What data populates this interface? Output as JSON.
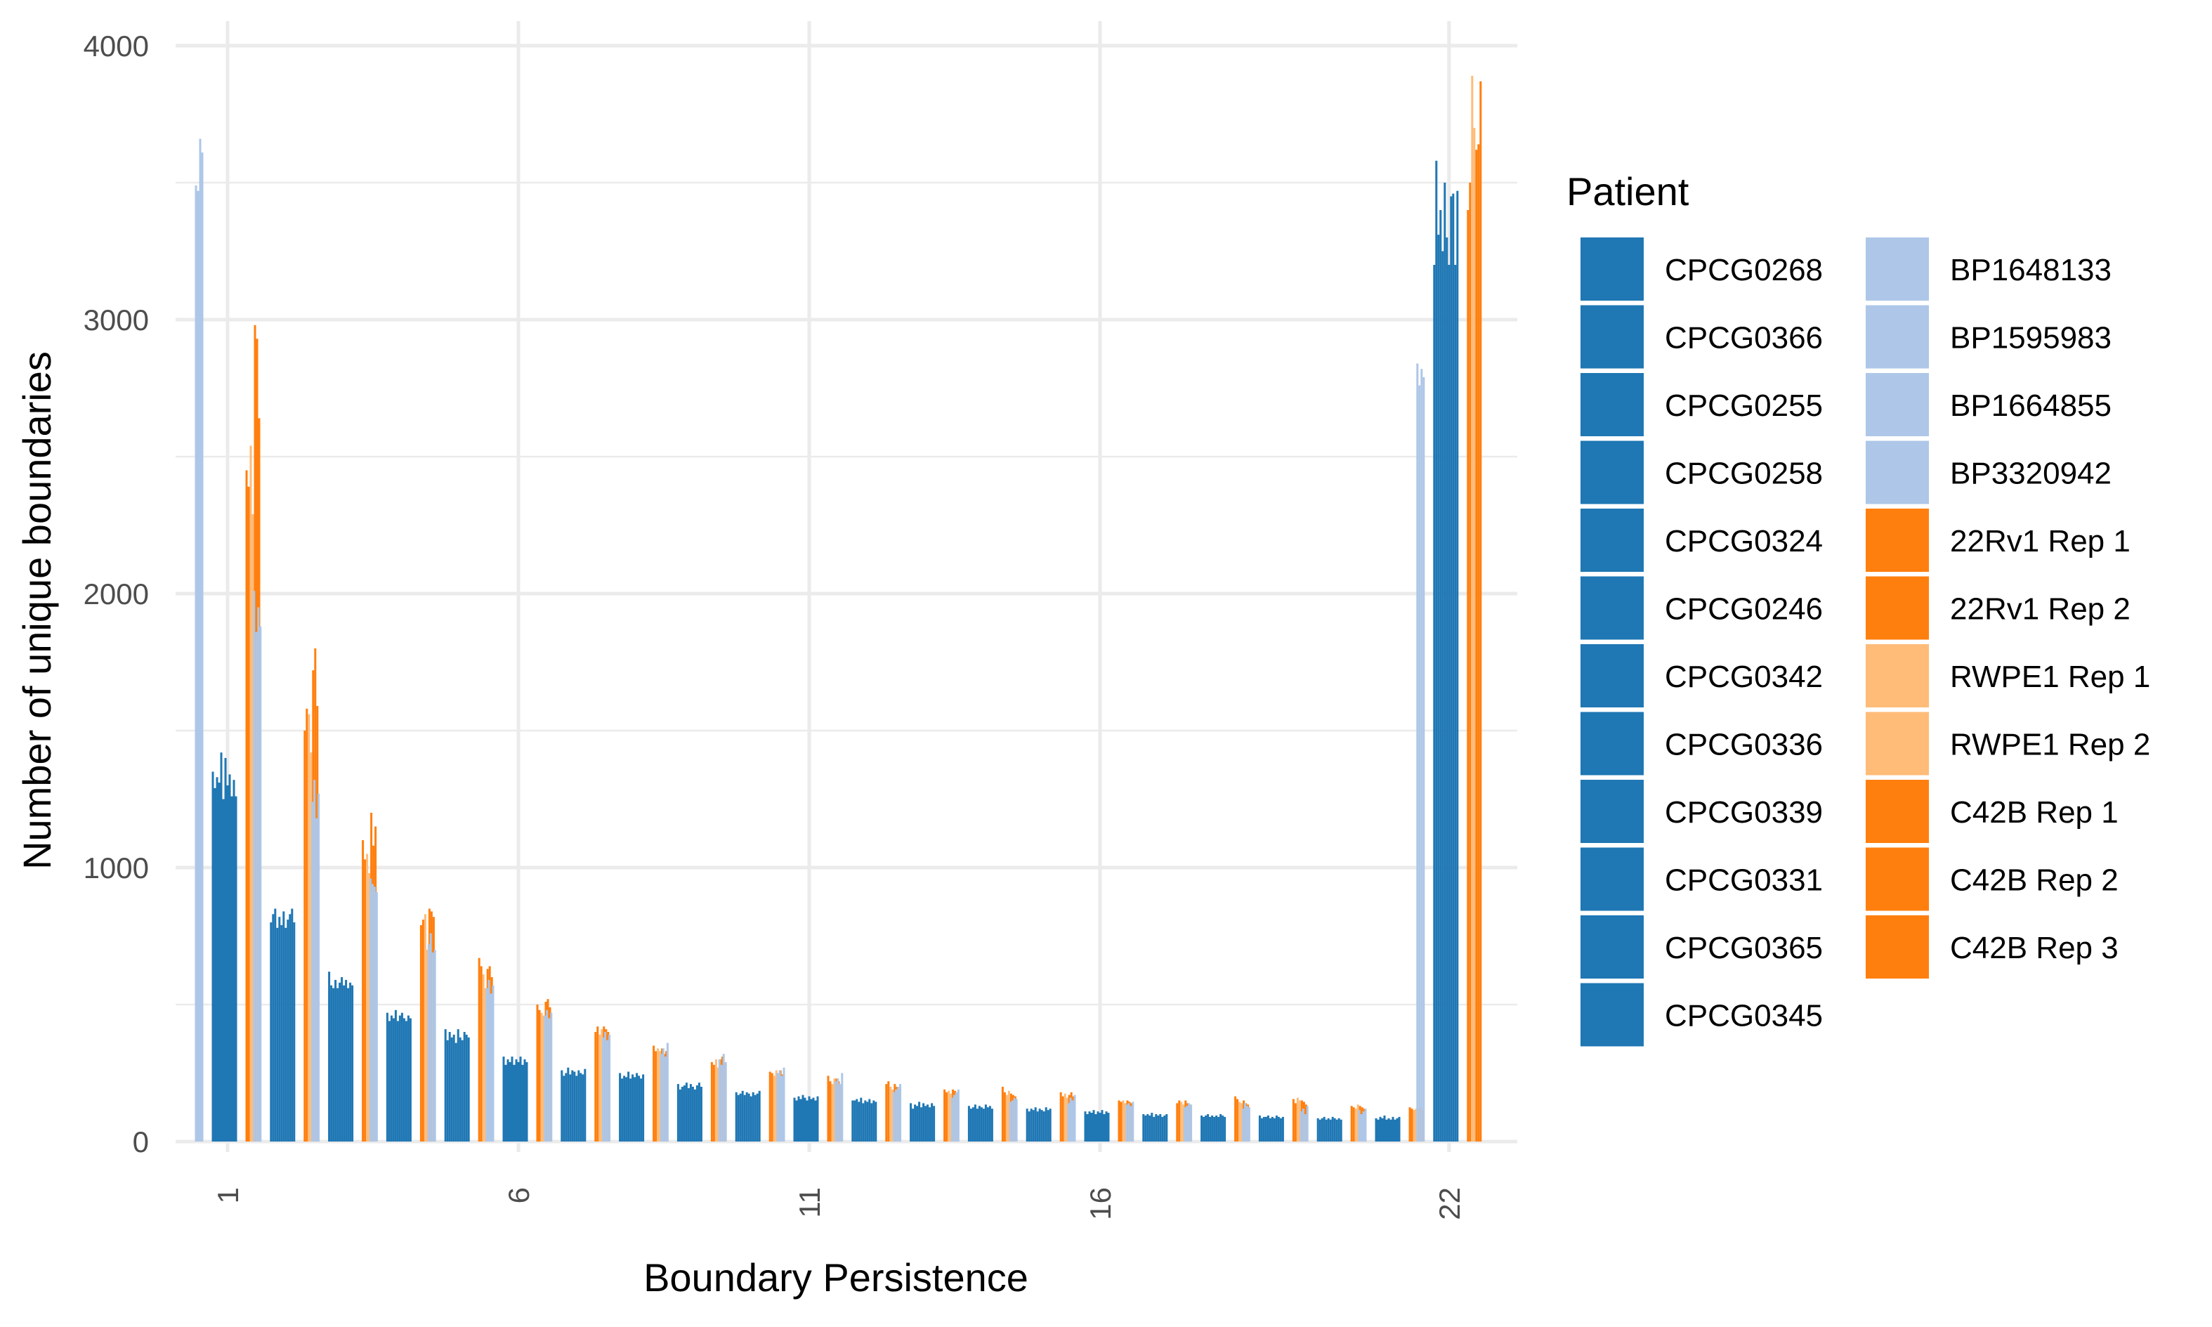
{
  "chart_data": {
    "type": "bar",
    "xlabel": "Boundary Persistence",
    "ylabel": "Number of unique boundaries",
    "ylim": [
      0,
      4000
    ],
    "y_ticks": [
      0,
      1000,
      2000,
      3000,
      4000
    ],
    "x_tick_labels": [
      "1",
      "6",
      "11",
      "16",
      "22"
    ],
    "x_tick_positions": [
      1,
      6,
      11,
      16,
      22
    ],
    "grid": true,
    "legend": {
      "title": "Patient",
      "placement": "right"
    },
    "categories": [
      1,
      2,
      3,
      4,
      5,
      6,
      7,
      8,
      9,
      10,
      11,
      12,
      13,
      14,
      15,
      16,
      17,
      18,
      19,
      20,
      21,
      22
    ],
    "series": [
      {
        "name": "CPCG0268",
        "color": "#1f77b4",
        "values": [
          1350,
          800,
          620,
          470,
          410,
          310,
          260,
          250,
          210,
          180,
          160,
          150,
          140,
          130,
          120,
          110,
          100,
          95,
          95,
          85,
          85,
          3200
        ]
      },
      {
        "name": "CPCG0366",
        "color": "#1f77b4",
        "values": [
          1290,
          830,
          570,
          440,
          370,
          280,
          240,
          230,
          190,
          170,
          150,
          150,
          120,
          120,
          110,
          100,
          95,
          90,
          85,
          80,
          80,
          3580
        ]
      },
      {
        "name": "CPCG0255",
        "color": "#1f77b4",
        "values": [
          1330,
          850,
          560,
          460,
          400,
          300,
          250,
          240,
          200,
          175,
          165,
          155,
          135,
          125,
          120,
          110,
          100,
          95,
          90,
          85,
          90,
          3310
        ]
      },
      {
        "name": "CPCG0258",
        "color": "#1f77b4",
        "values": [
          1310,
          780,
          590,
          450,
          380,
          290,
          270,
          235,
          205,
          185,
          155,
          145,
          130,
          135,
          115,
          105,
          95,
          100,
          90,
          90,
          85,
          3400
        ]
      },
      {
        "name": "CPCG0324",
        "color": "#1f77b4",
        "values": [
          1420,
          820,
          560,
          480,
          390,
          310,
          245,
          255,
          215,
          170,
          170,
          160,
          145,
          120,
          125,
          115,
          105,
          90,
          95,
          80,
          95,
          3250
        ]
      },
      {
        "name": "CPCG0246",
        "color": "#1f77b4",
        "values": [
          1250,
          790,
          580,
          440,
          360,
          280,
          260,
          230,
          195,
          180,
          160,
          140,
          125,
          130,
          110,
          100,
          90,
          95,
          85,
          85,
          80,
          3500
        ]
      },
      {
        "name": "CPCG0342",
        "color": "#1f77b4",
        "values": [
          1400,
          840,
          600,
          460,
          410,
          300,
          255,
          245,
          210,
          175,
          150,
          150,
          140,
          125,
          120,
          110,
          100,
          90,
          90,
          80,
          85,
          3300
        ]
      },
      {
        "name": "CPCG0336",
        "color": "#1f77b4",
        "values": [
          1300,
          780,
          570,
          470,
          380,
          290,
          240,
          235,
          200,
          165,
          165,
          145,
          130,
          120,
          115,
          105,
          95,
          95,
          85,
          90,
          80,
          3200
        ]
      },
      {
        "name": "CPCG0339",
        "color": "#1f77b4",
        "values": [
          1340,
          810,
          590,
          450,
          370,
          310,
          260,
          250,
          190,
          180,
          155,
          155,
          135,
          135,
          110,
          115,
          100,
          90,
          95,
          85,
          90,
          3450
        ]
      },
      {
        "name": "CPCG0331",
        "color": "#1f77b4",
        "values": [
          1260,
          830,
          560,
          440,
          400,
          280,
          250,
          240,
          205,
          170,
          160,
          140,
          125,
          125,
          125,
          100,
          90,
          100,
          90,
          80,
          80,
          3460
        ]
      },
      {
        "name": "CPCG0365",
        "color": "#1f77b4",
        "values": [
          1320,
          850,
          580,
          460,
          390,
          300,
          245,
          230,
          215,
          175,
          150,
          150,
          140,
          130,
          115,
          110,
          95,
          95,
          85,
          85,
          85,
          3200
        ]
      },
      {
        "name": "CPCG0345",
        "color": "#1f77b4",
        "values": [
          1260,
          800,
          570,
          450,
          380,
          290,
          265,
          245,
          200,
          185,
          165,
          145,
          130,
          120,
          120,
          105,
          100,
          90,
          90,
          80,
          90,
          3470
        ]
      },
      {
        "name": "BP1648133",
        "color": "#aec7e8",
        "values": [
          3490,
          2010,
          1240,
          960,
          720,
          560,
          460,
          380,
          320,
          300,
          250,
          220,
          180,
          160,
          145,
          140,
          135,
          125,
          120,
          110,
          115,
          2840
        ]
      },
      {
        "name": "BP1595983",
        "color": "#aec7e8",
        "values": [
          3470,
          1860,
          1320,
          940,
          760,
          590,
          480,
          400,
          340,
          280,
          260,
          230,
          190,
          170,
          150,
          160,
          140,
          130,
          140,
          120,
          100,
          2760
        ]
      },
      {
        "name": "BP1664855",
        "color": "#aec7e8",
        "values": [
          3660,
          1950,
          1180,
          930,
          690,
          540,
          450,
          370,
          310,
          320,
          240,
          210,
          200,
          180,
          160,
          150,
          130,
          140,
          130,
          100,
          110,
          2820
        ]
      },
      {
        "name": "BP3320942",
        "color": "#aec7e8",
        "values": [
          3610,
          1880,
          1270,
          910,
          700,
          570,
          470,
          390,
          360,
          290,
          270,
          250,
          210,
          190,
          155,
          170,
          145,
          135,
          125,
          130,
          120,
          2790
        ]
      },
      {
        "name": "22Rv1 Rep 1",
        "color": "#ff7f0e",
        "values": [
          2450,
          1500,
          1100,
          790,
          670,
          500,
          400,
          350,
          290,
          255,
          240,
          210,
          190,
          200,
          180,
          150,
          140,
          165,
          155,
          130,
          125,
          3400
        ]
      },
      {
        "name": "22Rv1 Rep 2",
        "color": "#ff7f0e",
        "values": [
          2390,
          1580,
          1030,
          810,
          640,
          480,
          420,
          330,
          280,
          250,
          220,
          220,
          180,
          180,
          165,
          145,
          150,
          155,
          140,
          125,
          120,
          3500
        ]
      },
      {
        "name": "RWPE1 Rep 1",
        "color": "#ffbb78",
        "values": [
          2540,
          1560,
          1050,
          830,
          610,
          470,
          390,
          340,
          300,
          240,
          210,
          200,
          185,
          170,
          175,
          150,
          145,
          145,
          160,
          120,
          115,
          3890
        ]
      },
      {
        "name": "RWPE1 Rep 2",
        "color": "#ffbb78",
        "values": [
          2290,
          1420,
          980,
          700,
          560,
          460,
          410,
          330,
          270,
          260,
          230,
          190,
          175,
          185,
          160,
          140,
          135,
          140,
          150,
          135,
          120,
          3700
        ]
      },
      {
        "name": "C42B Rep 1",
        "color": "#ff7f0e",
        "values": [
          2980,
          1720,
          1200,
          850,
          630,
          510,
          420,
          340,
          300,
          250,
          230,
          210,
          190,
          175,
          170,
          150,
          150,
          150,
          150,
          130,
          120,
          3620
        ]
      },
      {
        "name": "C42B Rep 2",
        "color": "#ff7f0e",
        "values": [
          2930,
          1800,
          1080,
          840,
          640,
          520,
          410,
          320,
          310,
          260,
          220,
          200,
          185,
          170,
          180,
          145,
          140,
          140,
          145,
          125,
          125,
          3640
        ]
      },
      {
        "name": "C42B Rep 3",
        "color": "#ff7f0e",
        "values": [
          2640,
          1590,
          1150,
          820,
          600,
          490,
          400,
          330,
          285,
          245,
          205,
          195,
          180,
          165,
          165,
          140,
          135,
          135,
          135,
          120,
          115,
          3870
        ]
      }
    ]
  }
}
